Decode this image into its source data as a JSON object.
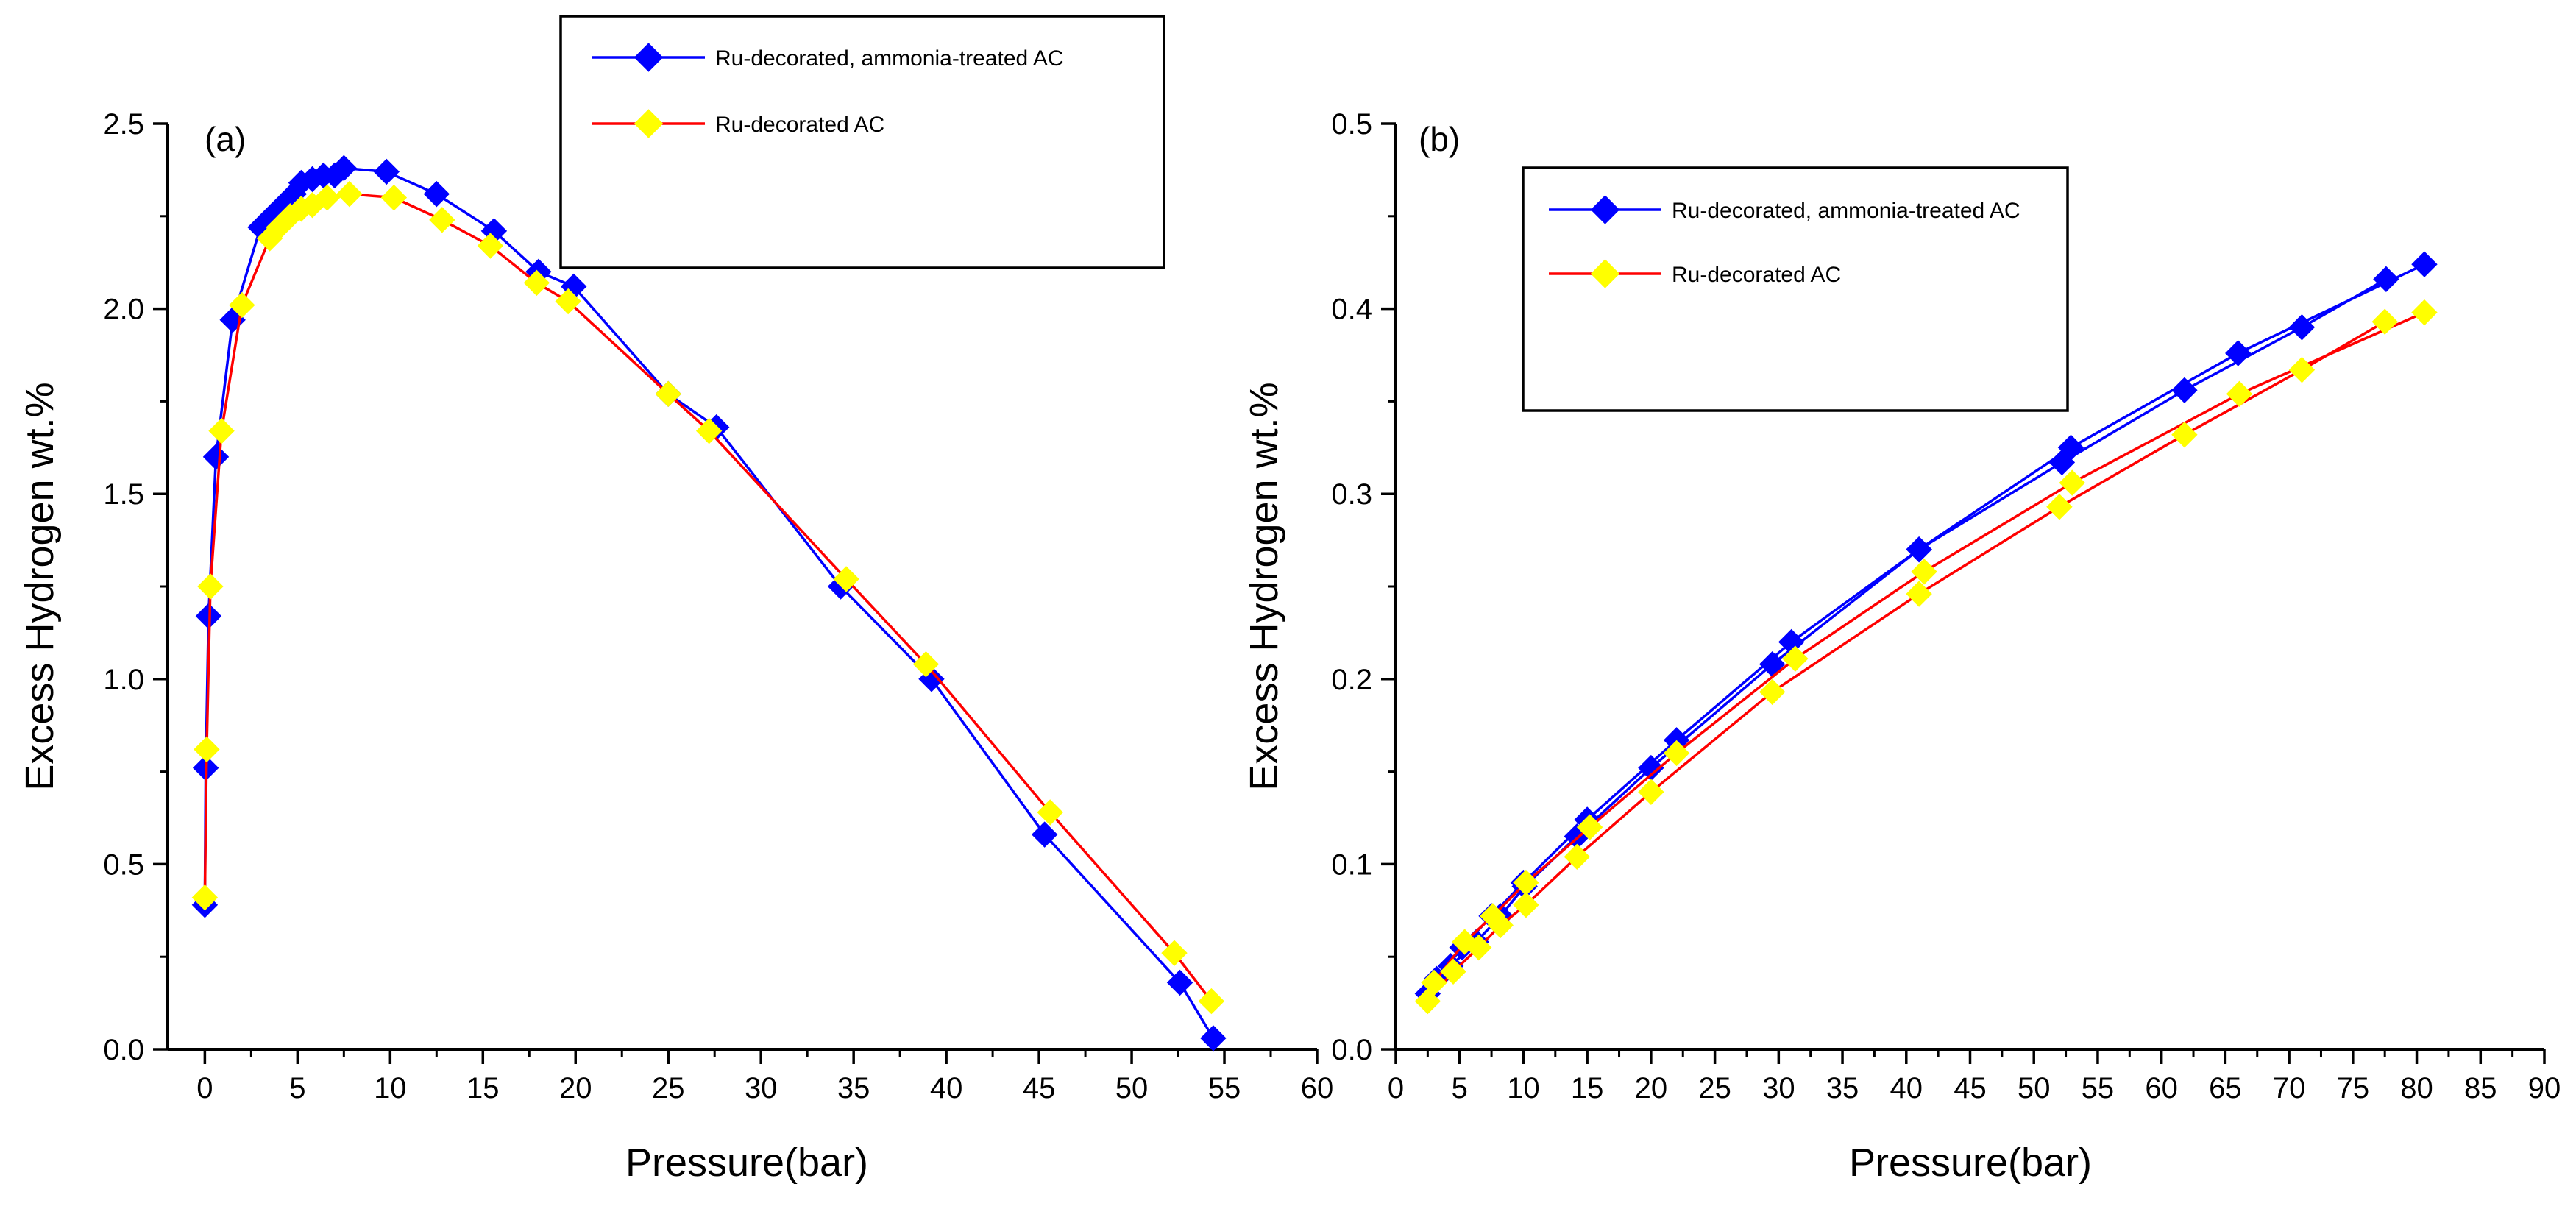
{
  "colors": {
    "series_1_line": "#0000ff",
    "series_1_marker": "#0000ff",
    "series_2_line": "#ff0000",
    "series_2_marker": "#ffff00"
  },
  "chart_data": [
    {
      "type": "line",
      "panel_label": "(a)",
      "xlabel": "Pressure(bar)",
      "ylabel": "Excess Hydrogen wt.%",
      "xlim": [
        -2,
        60
      ],
      "ylim": [
        0,
        2.5
      ],
      "xticks": [
        0,
        5,
        10,
        15,
        20,
        25,
        30,
        35,
        40,
        45,
        50,
        55,
        60
      ],
      "yticks": [
        0.0,
        0.5,
        1.0,
        1.5,
        2.0,
        2.5
      ],
      "ytick_labels": [
        "0.0",
        "0.5",
        "1.0",
        "1.5",
        "2.0",
        "2.5"
      ],
      "legend_position": "top-center",
      "series": [
        {
          "name": "Ru-decorated, ammonia-treated AC",
          "line_color": "#0000ff",
          "marker_color": "#0000ff",
          "marker": "diamond",
          "x": [
            0.0,
            0.05,
            0.2,
            0.6,
            1.5,
            3.0,
            3.6,
            4.2,
            4.8,
            5.2,
            5.8,
            6.4,
            7.0,
            7.5,
            9.8,
            12.5,
            15.6,
            18.0,
            19.9,
            25.0,
            27.6,
            34.3,
            39.2,
            45.3,
            52.6,
            54.4
          ],
          "y": [
            0.39,
            0.76,
            1.17,
            1.6,
            1.97,
            2.22,
            2.25,
            2.28,
            2.31,
            2.34,
            2.35,
            2.36,
            2.36,
            2.38,
            2.37,
            2.31,
            2.21,
            2.1,
            2.06,
            1.77,
            1.68,
            1.25,
            1.0,
            0.58,
            0.18,
            0.03
          ]
        },
        {
          "name": "Ru-decorated AC",
          "line_color": "#ff0000",
          "marker_color": "#ffff00",
          "marker": "diamond",
          "x": [
            0.0,
            0.1,
            0.3,
            0.9,
            2.0,
            3.5,
            4.0,
            4.6,
            5.2,
            5.8,
            6.6,
            7.8,
            10.2,
            12.8,
            15.4,
            17.9,
            19.6,
            25.0,
            27.2,
            34.6,
            38.9,
            45.6,
            52.3,
            54.3
          ],
          "y": [
            0.41,
            0.81,
            1.25,
            1.67,
            2.01,
            2.19,
            2.22,
            2.25,
            2.27,
            2.28,
            2.3,
            2.31,
            2.3,
            2.24,
            2.17,
            2.07,
            2.02,
            1.77,
            1.67,
            1.27,
            1.04,
            0.64,
            0.26,
            0.13
          ]
        }
      ]
    },
    {
      "type": "line",
      "panel_label": "(b)",
      "xlabel": "Pressure(bar)",
      "ylabel": "Excess Hydrogen wt.%",
      "xlim": [
        0,
        90
      ],
      "ylim": [
        0,
        0.5
      ],
      "xticks": [
        0,
        5,
        10,
        15,
        20,
        25,
        30,
        35,
        40,
        45,
        50,
        55,
        60,
        65,
        70,
        75,
        80,
        85,
        90
      ],
      "yticks": [
        0.0,
        0.1,
        0.2,
        0.3,
        0.4,
        0.5
      ],
      "ytick_labels": [
        "0.0",
        "0.1",
        "0.2",
        "0.3",
        "0.4",
        "0.5"
      ],
      "legend_position": "top-left",
      "series": [
        {
          "name": "Ru-decorated, ammonia-treated AC",
          "line_color": "#0000ff",
          "marker_color": "#0000ff",
          "marker": "diamond",
          "adsorption": {
            "x": [
              2.5,
              4.3,
              6.3,
              8.2,
              10.1,
              14.2,
              20.0,
              29.5,
              41.0,
              52.2,
              61.8,
              71.0,
              77.6
            ],
            "y": [
              0.03,
              0.045,
              0.058,
              0.072,
              0.088,
              0.115,
              0.152,
              0.208,
              0.27,
              0.317,
              0.356,
              0.39,
              0.416
            ]
          },
          "desorption": {
            "x": [
              80.6,
              66.0,
              52.9,
              41.0,
              31.0,
              22.0,
              15.0,
              10.0,
              7.5,
              5.2,
              3.2
            ],
            "y": [
              0.424,
              0.376,
              0.325,
              0.27,
              0.22,
              0.167,
              0.124,
              0.09,
              0.072,
              0.055,
              0.038
            ]
          }
        },
        {
          "name": "Ru-decorated AC",
          "line_color": "#ff0000",
          "marker_color": "#ffff00",
          "marker": "diamond",
          "adsorption": {
            "x": [
              2.5,
              4.5,
              6.5,
              8.2,
              10.2,
              14.2,
              20.0,
              29.5,
              41.0,
              52.0,
              61.8,
              71.0,
              77.5
            ],
            "y": [
              0.026,
              0.042,
              0.055,
              0.067,
              0.078,
              0.104,
              0.139,
              0.193,
              0.246,
              0.293,
              0.332,
              0.367,
              0.393
            ]
          },
          "desorption": {
            "x": [
              80.6,
              66.1,
              53.0,
              41.4,
              31.3,
              22.0,
              15.2,
              10.2,
              7.6,
              5.4,
              3.0
            ],
            "y": [
              0.398,
              0.354,
              0.306,
              0.258,
              0.211,
              0.16,
              0.12,
              0.09,
              0.072,
              0.058,
              0.036
            ]
          }
        }
      ]
    }
  ]
}
